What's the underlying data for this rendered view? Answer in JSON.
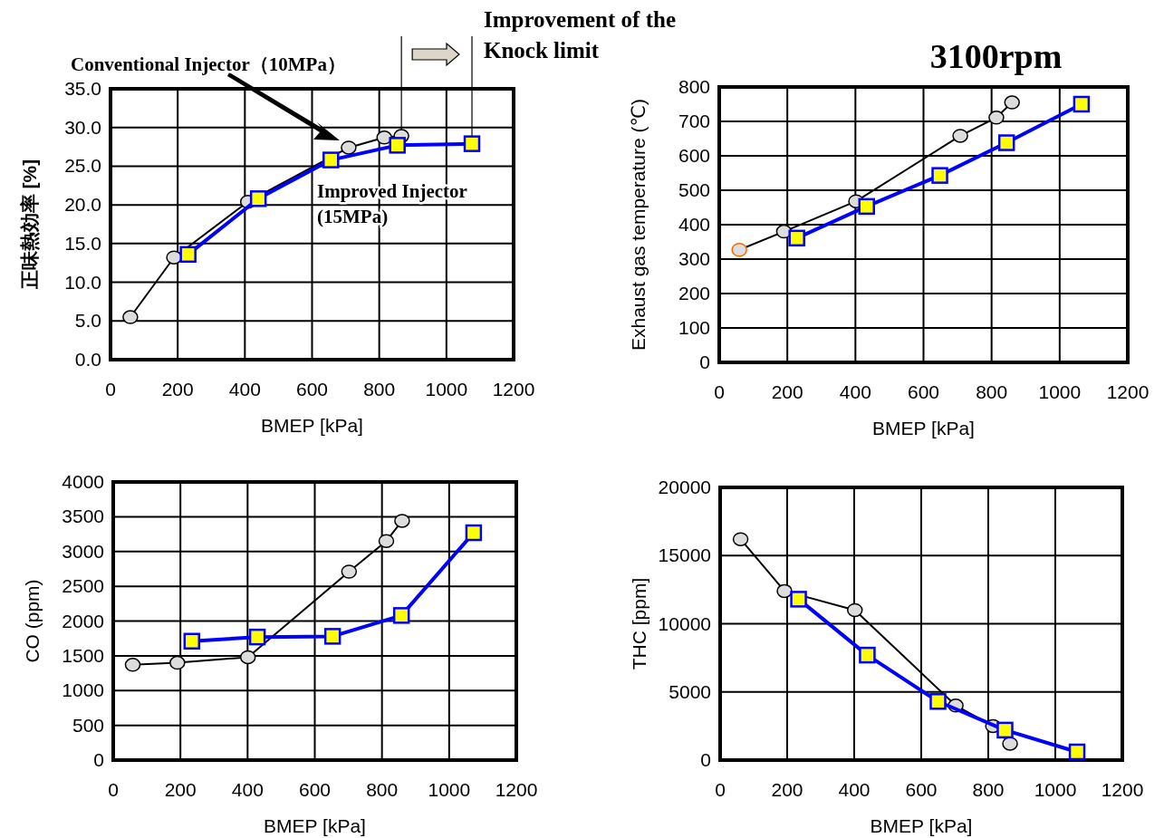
{
  "chart_data": [
    {
      "type": "line",
      "xlabel": "BMEP [kPa]",
      "ylabel": "正味熱効率 [%]",
      "xlim": [
        0,
        1200
      ],
      "xticks": [
        0,
        200,
        400,
        600,
        800,
        1000,
        1200
      ],
      "ylim": [
        0,
        35
      ],
      "yticks": [
        {
          "value": 0,
          "label": "0.0"
        },
        {
          "value": 5,
          "label": "5.0"
        },
        {
          "value": 10,
          "label": "10.0"
        },
        {
          "value": 15,
          "label": "15.0"
        },
        {
          "value": 20,
          "label": "20.0"
        },
        {
          "value": 25,
          "label": "25.0"
        },
        {
          "value": 30,
          "label": "30.0"
        },
        {
          "value": 35,
          "label": "35.0"
        }
      ],
      "grid": true,
      "series": [
        {
          "color": "#000000",
          "marker": "circle",
          "x": [
            59,
            189,
            409,
            709,
            815,
            866
          ],
          "values": [
            5.5,
            13.2,
            20.4,
            27.4,
            28.7,
            28.9
          ]
        },
        {
          "color": "#0000ff",
          "marker": "square",
          "x": [
            231,
            440,
            656,
            854,
            1076
          ],
          "values": [
            13.6,
            20.8,
            25.8,
            27.7,
            27.9
          ]
        }
      ],
      "ref_lines": [
        {
          "axis": "x",
          "value": 866
        },
        {
          "axis": "x",
          "value": 1076
        }
      ],
      "annotations": [
        "Conventional Injector（10MPa）",
        "Improved Injector (15MPa)",
        "Improvement of the Knock limit"
      ]
    },
    {
      "type": "line",
      "title": "3100rpm",
      "xlabel": "BMEP [kPa]",
      "ylabel": "Exhaust gas temperature (℃)",
      "xlim": [
        0,
        1200
      ],
      "xticks": [
        0,
        200,
        400,
        600,
        800,
        1000,
        1200
      ],
      "ylim": [
        0,
        800
      ],
      "yticks": [
        0,
        100,
        200,
        300,
        400,
        500,
        600,
        700,
        800
      ],
      "grid": true,
      "series": [
        {
          "color": "#000000",
          "marker": "circle",
          "colors": [
            "#ff6600",
            "#000000",
            "#000000",
            "#000000",
            "#000000",
            "#000000"
          ],
          "x": [
            59,
            190,
            402,
            708,
            814,
            860
          ],
          "values": [
            327,
            380,
            468,
            658,
            711,
            755
          ]
        },
        {
          "color": "#0000ff",
          "marker": "square",
          "x": [
            228,
            433,
            648,
            844,
            1064
          ],
          "values": [
            361,
            453,
            543,
            638,
            750
          ]
        }
      ]
    },
    {
      "type": "line",
      "xlabel": "BMEP [kPa]",
      "ylabel": "CO (ppm)",
      "xlim": [
        0,
        1200
      ],
      "xticks": [
        0,
        200,
        400,
        600,
        800,
        1000,
        1200
      ],
      "ylim": [
        0,
        4000
      ],
      "yticks": [
        0,
        500,
        1000,
        1500,
        2000,
        2500,
        3000,
        3500,
        4000
      ],
      "grid": true,
      "series": [
        {
          "color": "#000000",
          "marker": "circle",
          "x": [
            58,
            191,
            401,
            702,
            813,
            860
          ],
          "values": [
            1370,
            1400,
            1480,
            2710,
            3150,
            3440
          ]
        },
        {
          "color": "#0000ff",
          "marker": "square",
          "x": [
            234,
            429,
            653,
            858,
            1073
          ],
          "values": [
            1710,
            1770,
            1780,
            2080,
            3270
          ]
        }
      ]
    },
    {
      "type": "line",
      "xlabel": "BMEP [kPa]",
      "ylabel": "THC [ppm]",
      "xlim": [
        0,
        1200
      ],
      "xticks": [
        0,
        200,
        400,
        600,
        800,
        1000,
        1200
      ],
      "ylim": [
        0,
        20000
      ],
      "yticks": [
        0,
        5000,
        10000,
        15000,
        20000
      ],
      "grid": true,
      "series": [
        {
          "color": "#000000",
          "marker": "circle",
          "x": [
            61,
            192,
            402,
            703,
            814,
            865
          ],
          "values": [
            16200,
            12400,
            11000,
            4000,
            2500,
            1200
          ]
        },
        {
          "color": "#0000ff",
          "marker": "square",
          "x": [
            234,
            439,
            650,
            850,
            1065
          ],
          "values": [
            11800,
            7700,
            4300,
            2200,
            600
          ]
        }
      ]
    }
  ]
}
